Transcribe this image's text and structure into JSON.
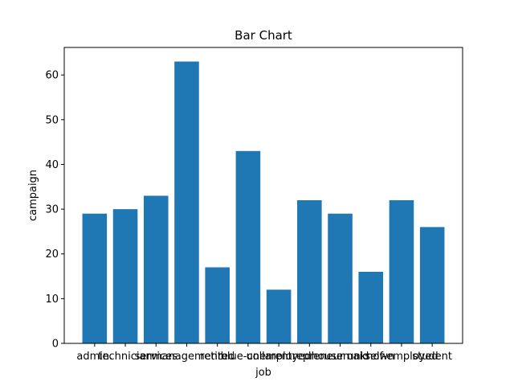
{
  "chart_data": {
    "type": "bar",
    "title": "Bar Chart",
    "x_label": "job",
    "y_label": "campaign",
    "categories": [
      "admin.",
      "technician",
      "services",
      "management",
      "retired",
      "blue-collar",
      "unemployed",
      "entrepreneur",
      "housemaid",
      "unknown",
      "self-employed",
      "student"
    ],
    "values": [
      29,
      30,
      33,
      63,
      17,
      43,
      12,
      32,
      29,
      16,
      32,
      26
    ],
    "color": "#1f77b4",
    "ylim": [
      0,
      66.15
    ],
    "yticks": [
      0,
      10,
      20,
      30,
      40,
      50,
      60
    ]
  }
}
